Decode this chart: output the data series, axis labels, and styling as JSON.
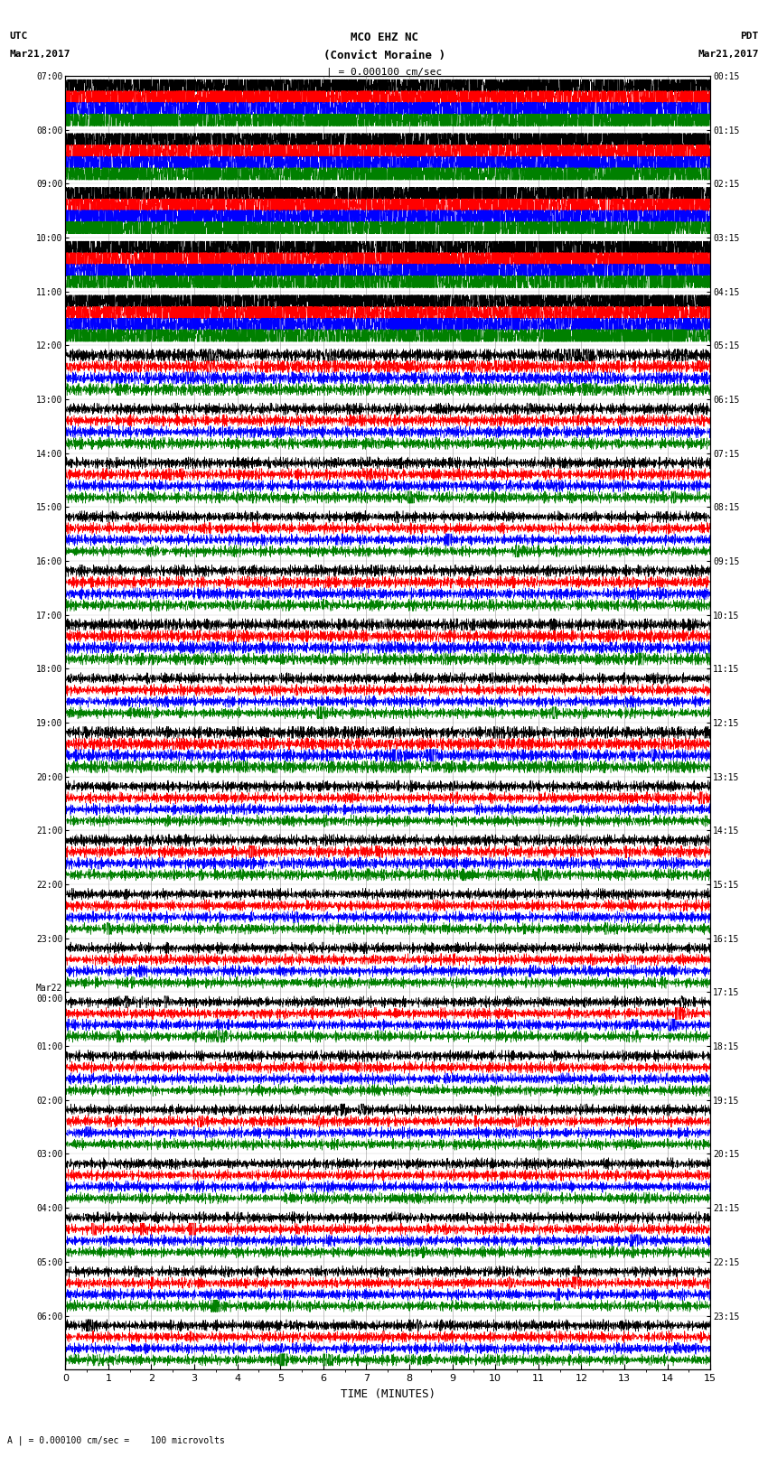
{
  "title_line1": "MCO EHZ NC",
  "title_line2": "(Convict Moraine )",
  "title_line3": "| = 0.000100 cm/sec",
  "left_header_line1": "UTC",
  "left_header_line2": "Mar21,2017",
  "right_header_line1": "PDT",
  "right_header_line2": "Mar21,2017",
  "xlabel": "TIME (MINUTES)",
  "footnote": "A | = 0.000100 cm/sec =    100 microvolts",
  "colors": [
    "black",
    "red",
    "blue",
    "green"
  ],
  "utc_labels": [
    "07:00",
    "08:00",
    "09:00",
    "10:00",
    "11:00",
    "12:00",
    "13:00",
    "14:00",
    "15:00",
    "16:00",
    "17:00",
    "18:00",
    "19:00",
    "20:00",
    "21:00",
    "22:00",
    "23:00",
    "Mar22\n00:00",
    "01:00",
    "02:00",
    "03:00",
    "04:00",
    "05:00",
    "06:00"
  ],
  "pdt_labels": [
    "00:15",
    "01:15",
    "02:15",
    "03:15",
    "04:15",
    "05:15",
    "06:15",
    "07:15",
    "08:15",
    "09:15",
    "10:15",
    "11:15",
    "12:15",
    "13:15",
    "14:15",
    "15:15",
    "16:15",
    "17:15",
    "18:15",
    "19:15",
    "20:15",
    "21:15",
    "22:15",
    "23:15"
  ],
  "row_amplitudes": [
    0.42,
    0.4,
    0.42,
    0.42,
    0.3,
    0.1,
    0.08,
    0.08,
    0.07,
    0.08,
    0.09,
    0.07,
    0.09,
    0.07,
    0.08,
    0.07,
    0.07,
    0.07,
    0.07,
    0.07,
    0.07,
    0.07,
    0.07,
    0.07
  ],
  "n_rows": 24,
  "n_channels": 4,
  "n_minutes": 15,
  "samples_per_minute": 200,
  "background_color": "white",
  "figsize": [
    8.5,
    16.13
  ],
  "dpi": 100
}
